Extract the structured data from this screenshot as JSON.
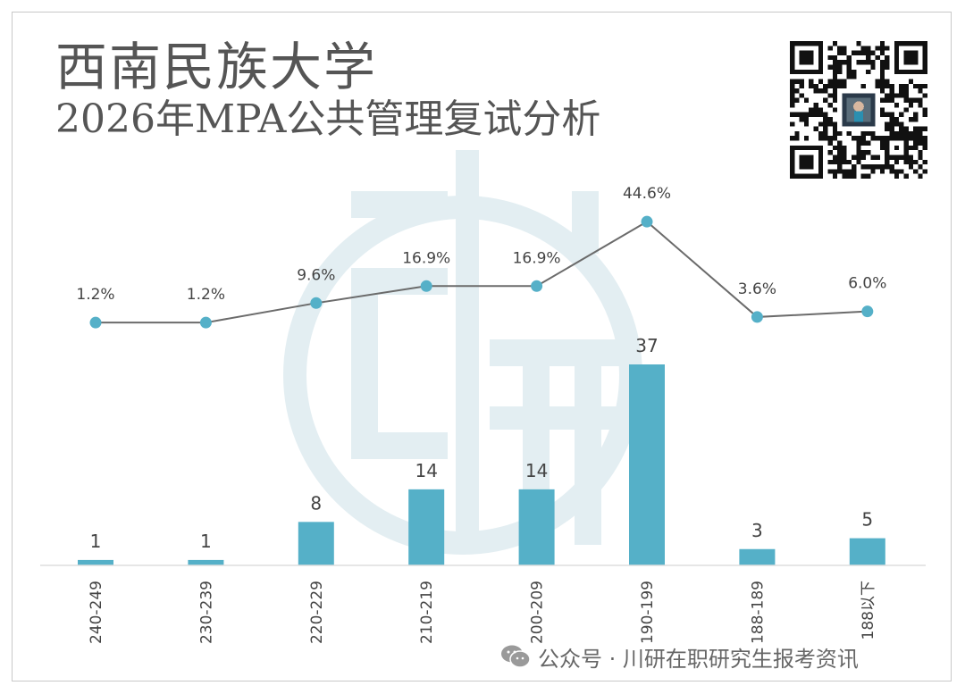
{
  "header": {
    "title_line1": "西南民族大学",
    "title_line2": "2026年MPA公共管理复试分析"
  },
  "qr_code": {
    "icon": "qr-code-icon"
  },
  "watermark": {
    "icon": "chuanyan-logo-watermark-icon",
    "color": "#e3eef2"
  },
  "footer": {
    "text": "公众号 · 川研在职研究生报考资讯",
    "icon": "wechat-icon"
  },
  "colors": {
    "bar": "#55b0c8",
    "line": "#6b6b6b",
    "marker": "#55b0c8",
    "text": "#444444"
  },
  "chart_data": {
    "type": "bar",
    "categories": [
      "240-249",
      "230-239",
      "220-229",
      "210-219",
      "200-209",
      "190-199",
      "188-189",
      "188以下"
    ],
    "series": [
      {
        "type": "bar",
        "values": [
          1,
          1,
          8,
          14,
          14,
          37,
          3,
          5
        ]
      },
      {
        "type": "line",
        "values": [
          1.2,
          1.2,
          9.6,
          16.9,
          16.9,
          44.6,
          3.6,
          6.0
        ]
      }
    ],
    "bar_labels": [
      "1",
      "1",
      "8",
      "14",
      "14",
      "37",
      "3",
      "5"
    ],
    "line_labels": [
      "1.2%",
      "1.2%",
      "9.6%",
      "16.9%",
      "16.9%",
      "44.6%",
      "3.6%",
      "6.0%"
    ],
    "title": "",
    "xlabel": "",
    "ylabel": "",
    "grid": false,
    "legend": "none",
    "x_tick_rotation": -90
  }
}
